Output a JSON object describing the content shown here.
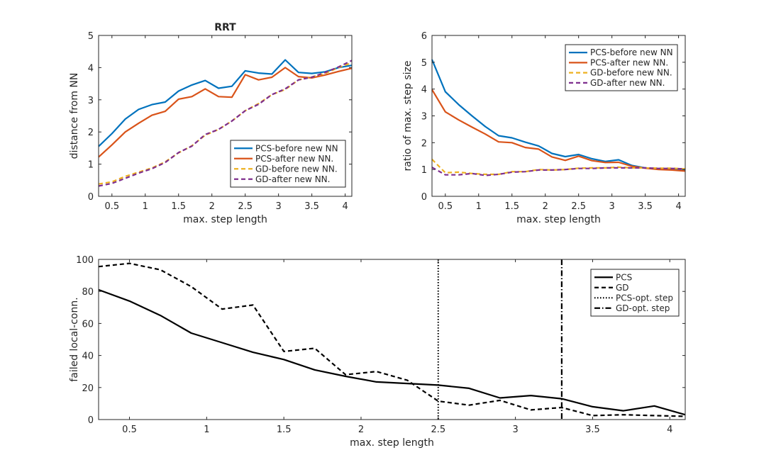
{
  "chart_data": [
    {
      "id": "rrt-distance",
      "type": "line",
      "title": "RRT",
      "xlabel": "max. step length",
      "ylabel": "distance from NN",
      "xlim": [
        0.3,
        4.1
      ],
      "ylim": [
        0,
        5
      ],
      "xticks": [
        0.5,
        1,
        1.5,
        2,
        2.5,
        3,
        3.5,
        4
      ],
      "yticks": [
        0,
        1,
        2,
        3,
        4,
        5
      ],
      "legend_position": "bottom-right",
      "grid": false,
      "x": [
        0.3,
        0.5,
        0.7,
        0.9,
        1.1,
        1.3,
        1.5,
        1.7,
        1.9,
        2.1,
        2.3,
        2.5,
        2.7,
        2.9,
        3.1,
        3.3,
        3.5,
        3.7,
        3.9,
        4.1
      ],
      "series": [
        {
          "name": "PCS-before new NN",
          "color": "#0072BD",
          "dash": "solid",
          "values": [
            1.55,
            1.95,
            2.4,
            2.7,
            2.85,
            2.93,
            3.27,
            3.46,
            3.6,
            3.36,
            3.42,
            3.9,
            3.83,
            3.8,
            4.24,
            3.85,
            3.82,
            3.87,
            4.0,
            4.07
          ]
        },
        {
          "name": "PCS-after new NN.",
          "color": "#D95319",
          "dash": "solid",
          "values": [
            1.22,
            1.6,
            2.0,
            2.27,
            2.52,
            2.64,
            3.02,
            3.1,
            3.34,
            3.1,
            3.08,
            3.78,
            3.62,
            3.7,
            4.0,
            3.72,
            3.68,
            3.77,
            3.88,
            3.98
          ]
        },
        {
          "name": "GD-before new NN.",
          "color": "#EDB120",
          "dash": "dashed",
          "values": [
            0.38,
            0.45,
            0.62,
            0.75,
            0.88,
            1.07,
            1.35,
            1.57,
            1.9,
            2.08,
            2.34,
            2.66,
            2.88,
            3.16,
            3.32,
            3.62,
            3.71,
            3.82,
            4.0,
            4.15
          ]
        },
        {
          "name": "GD-after new NN.",
          "color": "#7E2F8E",
          "dash": "dashed",
          "values": [
            0.32,
            0.4,
            0.56,
            0.72,
            0.86,
            1.05,
            1.36,
            1.56,
            1.92,
            2.08,
            2.34,
            2.66,
            2.86,
            3.16,
            3.34,
            3.62,
            3.7,
            3.85,
            4.02,
            4.22
          ]
        }
      ]
    },
    {
      "id": "step-size-ratio",
      "type": "line",
      "title": "",
      "xlabel": "max. step length",
      "ylabel": "ratio of max. step size",
      "xlim": [
        0.3,
        4.1
      ],
      "ylim": [
        0,
        6
      ],
      "xticks": [
        0.5,
        1,
        1.5,
        2,
        2.5,
        3,
        3.5,
        4
      ],
      "yticks": [
        0,
        1,
        2,
        3,
        4,
        5,
        6
      ],
      "legend_position": "top-right",
      "grid": false,
      "x": [
        0.3,
        0.5,
        0.7,
        0.9,
        1.1,
        1.3,
        1.5,
        1.7,
        1.9,
        2.1,
        2.3,
        2.5,
        2.7,
        2.9,
        3.1,
        3.3,
        3.5,
        3.7,
        3.9,
        4.1
      ],
      "series": [
        {
          "name": "PCS-before new NN",
          "color": "#0072BD",
          "dash": "solid",
          "values": [
            5.1,
            3.9,
            3.42,
            3.0,
            2.6,
            2.26,
            2.18,
            2.02,
            1.88,
            1.6,
            1.48,
            1.56,
            1.4,
            1.3,
            1.36,
            1.15,
            1.06,
            1.02,
            1.0,
            0.98
          ]
        },
        {
          "name": "PCS-after new NN.",
          "color": "#D95319",
          "dash": "solid",
          "values": [
            3.98,
            3.15,
            2.85,
            2.58,
            2.32,
            2.03,
            2.0,
            1.82,
            1.76,
            1.47,
            1.34,
            1.5,
            1.33,
            1.26,
            1.27,
            1.12,
            1.05,
            1.0,
            0.98,
            0.94
          ]
        },
        {
          "name": "GD-before new NN.",
          "color": "#EDB120",
          "dash": "dashed",
          "values": [
            1.38,
            0.88,
            0.9,
            0.85,
            0.82,
            0.82,
            0.92,
            0.92,
            1.0,
            0.98,
            1.0,
            1.05,
            1.06,
            1.06,
            1.09,
            1.06,
            1.06,
            1.05,
            1.05,
            1.02
          ]
        },
        {
          "name": "GD-after new NN.",
          "color": "#7E2F8E",
          "dash": "dashed",
          "values": [
            1.08,
            0.8,
            0.8,
            0.85,
            0.78,
            0.82,
            0.9,
            0.92,
            0.98,
            0.98,
            1.0,
            1.04,
            1.04,
            1.06,
            1.06,
            1.06,
            1.06,
            1.04,
            1.04,
            1.02
          ]
        }
      ]
    },
    {
      "id": "failed-local-conn",
      "type": "line",
      "title": "",
      "xlabel": "max. step length",
      "ylabel": "failed local-conn.",
      "xlim": [
        0.3,
        4.1
      ],
      "ylim": [
        0,
        100
      ],
      "xticks": [
        0.5,
        1,
        1.5,
        2,
        2.5,
        3,
        3.5,
        4
      ],
      "yticks": [
        0,
        20,
        40,
        60,
        80,
        100
      ],
      "legend_position": "top-right",
      "grid": false,
      "x": [
        0.3,
        0.5,
        0.7,
        0.9,
        1.1,
        1.3,
        1.5,
        1.7,
        1.9,
        2.1,
        2.3,
        2.5,
        2.7,
        2.9,
        3.1,
        3.3,
        3.5,
        3.7,
        3.9,
        4.1
      ],
      "series": [
        {
          "name": "PCS",
          "color": "#000000",
          "dash": "solid",
          "values": [
            81,
            74,
            65,
            54,
            48,
            42,
            37.5,
            31,
            27,
            23.5,
            22.5,
            21.5,
            19.5,
            13.5,
            15,
            13,
            8,
            5.5,
            8.5,
            3
          ]
        },
        {
          "name": "GD",
          "color": "#000000",
          "dash": "dashed",
          "values": [
            95.5,
            97.5,
            93.5,
            83,
            69,
            71.5,
            42.5,
            44.5,
            28,
            30,
            24.5,
            11.5,
            9,
            12,
            6,
            7.5,
            2.5,
            3,
            2.5,
            2
          ]
        }
      ],
      "vlines": [
        {
          "name": "PCS-opt. step",
          "x": 2.5,
          "color": "#000000",
          "dash": "dotted"
        },
        {
          "name": "GD-opt. step",
          "x": 3.3,
          "color": "#000000",
          "dash": "dashdot"
        }
      ]
    }
  ]
}
